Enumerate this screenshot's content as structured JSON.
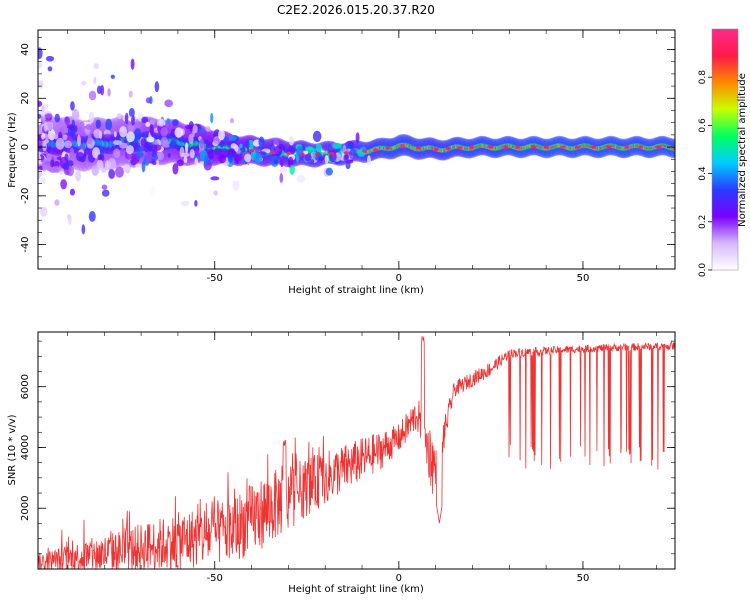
{
  "title": "C2E2.2026.015.20.37.R20",
  "chart_data": [
    {
      "type": "heatmap",
      "title": "C2E2.2026.015.20.37.R20",
      "xlabel": "Height of straight line (km)",
      "ylabel": "Frequency (Hz)",
      "xlim": [
        -98,
        75
      ],
      "ylim": [
        -50,
        48
      ],
      "xticks": [
        -50,
        0,
        50
      ],
      "yticks": [
        -40,
        -20,
        0,
        20,
        40
      ],
      "colorbar": {
        "label": "Normalized spectral amplitude",
        "range": [
          0,
          1
        ],
        "ticks": [
          0.0,
          0.2,
          0.4,
          0.6,
          0.8
        ],
        "colors": [
          "#ffffff",
          "#d7b8ff",
          "#7a00ff",
          "#2a3cff",
          "#00ccff",
          "#00ff60",
          "#c8ff00",
          "#ff8800",
          "#ff1a4a",
          "#ff2a8a"
        ]
      },
      "ridge": [
        {
          "x": -95,
          "f": 1.5,
          "a": 0.45,
          "spread": 8
        },
        {
          "x": -85,
          "f": 1.0,
          "a": 0.5,
          "spread": 7
        },
        {
          "x": -75,
          "f": 2.0,
          "a": 0.5,
          "spread": 7
        },
        {
          "x": -65,
          "f": 2.5,
          "a": 0.55,
          "spread": 6
        },
        {
          "x": -55,
          "f": 1.0,
          "a": 0.6,
          "spread": 5
        },
        {
          "x": -45,
          "f": -1.0,
          "a": 0.65,
          "spread": 3
        },
        {
          "x": -35,
          "f": -2.0,
          "a": 0.75,
          "spread": 2.5
        },
        {
          "x": -25,
          "f": -3.0,
          "a": 0.8,
          "spread": 2
        },
        {
          "x": -15,
          "f": -2.5,
          "a": 0.85,
          "spread": 1.5
        },
        {
          "x": -5,
          "f": -1.0,
          "a": 0.9,
          "spread": 1.2
        },
        {
          "x": 0,
          "f": 0.5,
          "a": 0.95,
          "spread": 1.5
        },
        {
          "x": 10,
          "f": -1.0,
          "a": 0.9,
          "spread": 1.2
        },
        {
          "x": 20,
          "f": 0.0,
          "a": 0.95,
          "spread": 1.0
        },
        {
          "x": 40,
          "f": 0.0,
          "a": 0.97,
          "spread": 1.0
        },
        {
          "x": 60,
          "f": 0.0,
          "a": 0.97,
          "spread": 1.0
        },
        {
          "x": 75,
          "f": 0.0,
          "a": 0.97,
          "spread": 1.0
        }
      ]
    },
    {
      "type": "line",
      "xlabel": "Height of straight line (km)",
      "ylabel": "SNR (10 * v/v)",
      "xlim": [
        -98,
        75
      ],
      "ylim": [
        0,
        7800
      ],
      "xticks": [
        -50,
        0,
        50
      ],
      "yticks": [
        2000,
        4000,
        6000
      ],
      "color": "#ee3333",
      "envelope": [
        {
          "x": -98,
          "base": 200,
          "noise": 400
        },
        {
          "x": -80,
          "base": 500,
          "noise": 800
        },
        {
          "x": -60,
          "base": 900,
          "noise": 1200
        },
        {
          "x": -45,
          "base": 1300,
          "noise": 1400
        },
        {
          "x": -35,
          "base": 2000,
          "noise": 1500
        },
        {
          "x": -25,
          "base": 2700,
          "noise": 1200
        },
        {
          "x": -15,
          "base": 3300,
          "noise": 1000
        },
        {
          "x": -5,
          "base": 3900,
          "noise": 800
        },
        {
          "x": 0,
          "base": 4300,
          "noise": 600
        },
        {
          "x": 5,
          "base": 5100,
          "noise": 700
        },
        {
          "x": 10,
          "base": 3200,
          "noise": 1500
        },
        {
          "x": 15,
          "base": 5900,
          "noise": 500
        },
        {
          "x": 25,
          "base": 6600,
          "noise": 500
        },
        {
          "x": 30,
          "base": 7100,
          "noise": 300
        },
        {
          "x": 50,
          "base": 7250,
          "noise": 250
        },
        {
          "x": 75,
          "base": 7350,
          "noise": 250
        }
      ],
      "peaks": [
        {
          "x": 6.5,
          "y": 7700
        },
        {
          "x": -31,
          "y": 4300
        }
      ],
      "dip": {
        "x": 11,
        "y": 1500
      },
      "dropouts": {
        "from_x": 28,
        "to_x": 73,
        "min_y": 3200
      }
    }
  ]
}
